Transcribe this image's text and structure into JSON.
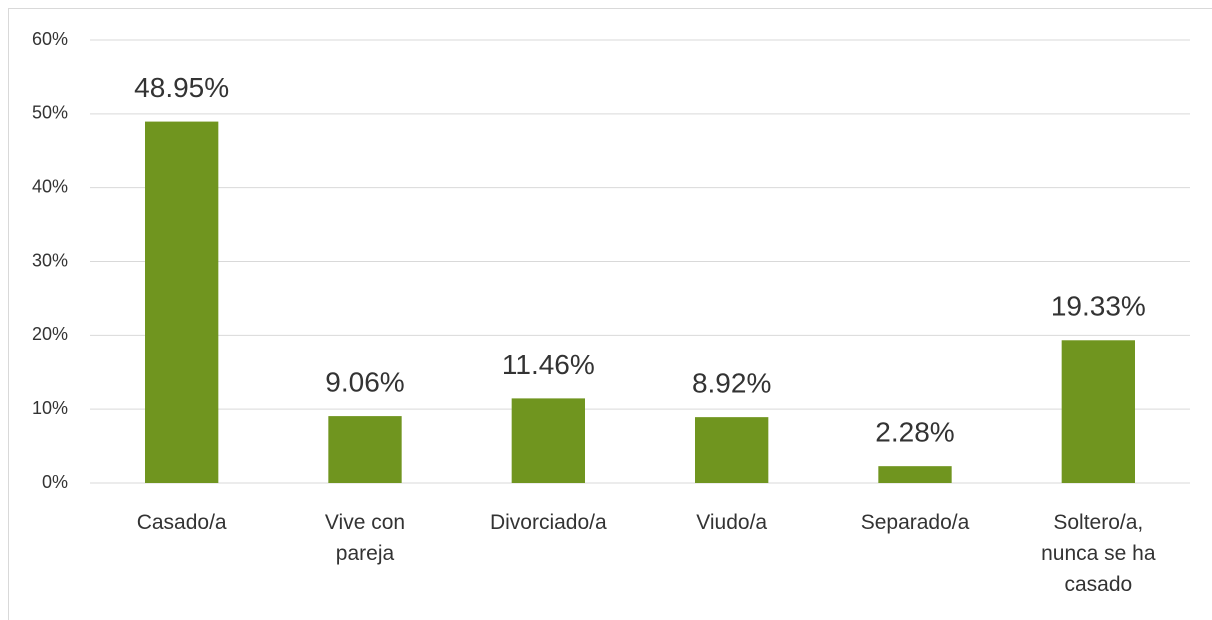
{
  "chart_data": {
    "type": "bar",
    "categories": [
      "Casado/a",
      "Vive con pareja",
      "Divorciado/a",
      "Viudo/a",
      "Separado/a",
      "Soltero/a, nunca se ha casado"
    ],
    "values": [
      48.95,
      9.06,
      11.46,
      8.92,
      2.28,
      19.33
    ],
    "value_labels": [
      "48.95%",
      "9.06%",
      "11.46%",
      "8.92%",
      "2.28%",
      "19.33%"
    ],
    "color": "#70951f",
    "ylim": [
      0,
      60
    ],
    "yticks": [
      {
        "value": 0,
        "label": "0%"
      },
      {
        "value": 10,
        "label": "10%"
      },
      {
        "value": 20,
        "label": "20%"
      },
      {
        "value": 30,
        "label": "30%"
      },
      {
        "value": 40,
        "label": "40%"
      },
      {
        "value": 50,
        "label": "50%"
      },
      {
        "value": 60,
        "label": "60%"
      }
    ],
    "grid": true
  }
}
